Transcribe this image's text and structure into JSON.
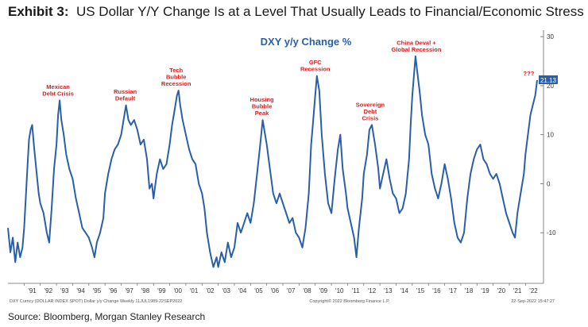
{
  "header": {
    "exhibit_label": "Exhibit 3:",
    "title": "US Dollar Y/Y Change Is at a Level That Usually Leads to Financial/Economic Stress"
  },
  "source": "Source: Bloomberg, Morgan Stanley Research",
  "chart_data": {
    "type": "line",
    "title": "DXY y/y Change %",
    "series": [
      {
        "name": "DXY y/y Change %",
        "color": "#2a5fa8",
        "points": [
          [
            1990.0,
            -9
          ],
          [
            1990.15,
            -14
          ],
          [
            1990.3,
            -11
          ],
          [
            1990.45,
            -16
          ],
          [
            1990.6,
            -12
          ],
          [
            1990.75,
            -15
          ],
          [
            1990.9,
            -13
          ],
          [
            1991.0,
            -9
          ],
          [
            1991.1,
            -3
          ],
          [
            1991.2,
            3
          ],
          [
            1991.3,
            9
          ],
          [
            1991.4,
            11
          ],
          [
            1991.5,
            12
          ],
          [
            1991.6,
            8
          ],
          [
            1991.75,
            3
          ],
          [
            1991.9,
            -2
          ],
          [
            1992.0,
            -4
          ],
          [
            1992.2,
            -6
          ],
          [
            1992.4,
            -10
          ],
          [
            1992.55,
            -12
          ],
          [
            1992.7,
            -5
          ],
          [
            1992.85,
            3
          ],
          [
            1993.0,
            8
          ],
          [
            1993.1,
            14
          ],
          [
            1993.2,
            17
          ],
          [
            1993.3,
            13
          ],
          [
            1993.45,
            10
          ],
          [
            1993.6,
            6
          ],
          [
            1993.8,
            3
          ],
          [
            1994.0,
            1
          ],
          [
            1994.2,
            -3
          ],
          [
            1994.4,
            -6
          ],
          [
            1994.6,
            -9
          ],
          [
            1994.8,
            -10
          ],
          [
            1995.0,
            -11
          ],
          [
            1995.2,
            -13
          ],
          [
            1995.35,
            -15
          ],
          [
            1995.5,
            -12
          ],
          [
            1995.7,
            -10
          ],
          [
            1995.9,
            -7
          ],
          [
            1996.0,
            -2
          ],
          [
            1996.2,
            2
          ],
          [
            1996.4,
            5
          ],
          [
            1996.6,
            7
          ],
          [
            1996.8,
            8
          ],
          [
            1997.0,
            10
          ],
          [
            1997.15,
            13
          ],
          [
            1997.3,
            16
          ],
          [
            1997.45,
            13
          ],
          [
            1997.6,
            12
          ],
          [
            1997.8,
            13
          ],
          [
            1998.0,
            11
          ],
          [
            1998.2,
            8
          ],
          [
            1998.4,
            9
          ],
          [
            1998.6,
            5
          ],
          [
            1998.75,
            -1
          ],
          [
            1998.9,
            0
          ],
          [
            1999.0,
            -3
          ],
          [
            1999.2,
            2
          ],
          [
            1999.4,
            5
          ],
          [
            1999.6,
            3
          ],
          [
            1999.8,
            4
          ],
          [
            2000.0,
            8
          ],
          [
            2000.15,
            12
          ],
          [
            2000.3,
            15
          ],
          [
            2000.45,
            18
          ],
          [
            2000.55,
            19
          ],
          [
            2000.65,
            16
          ],
          [
            2000.8,
            13
          ],
          [
            2001.0,
            10
          ],
          [
            2001.2,
            7
          ],
          [
            2001.4,
            5
          ],
          [
            2001.6,
            4
          ],
          [
            2001.8,
            0
          ],
          [
            2002.0,
            -2
          ],
          [
            2002.15,
            -5
          ],
          [
            2002.3,
            -10
          ],
          [
            2002.5,
            -14
          ],
          [
            2002.7,
            -17
          ],
          [
            2002.9,
            -15
          ],
          [
            2003.0,
            -17
          ],
          [
            2003.2,
            -14
          ],
          [
            2003.4,
            -16
          ],
          [
            2003.6,
            -12
          ],
          [
            2003.8,
            -15
          ],
          [
            2004.0,
            -13
          ],
          [
            2004.2,
            -8
          ],
          [
            2004.4,
            -10
          ],
          [
            2004.6,
            -8
          ],
          [
            2004.8,
            -6
          ],
          [
            2005.0,
            -8
          ],
          [
            2005.2,
            -4
          ],
          [
            2005.4,
            2
          ],
          [
            2005.6,
            8
          ],
          [
            2005.75,
            13
          ],
          [
            2005.9,
            10
          ],
          [
            2006.0,
            8
          ],
          [
            2006.2,
            3
          ],
          [
            2006.4,
            -2
          ],
          [
            2006.6,
            -4
          ],
          [
            2006.8,
            -2
          ],
          [
            2007.0,
            -4
          ],
          [
            2007.2,
            -6
          ],
          [
            2007.4,
            -8
          ],
          [
            2007.6,
            -7
          ],
          [
            2007.8,
            -10
          ],
          [
            2008.0,
            -11
          ],
          [
            2008.2,
            -13
          ],
          [
            2008.4,
            -9
          ],
          [
            2008.6,
            -2
          ],
          [
            2008.75,
            8
          ],
          [
            2008.9,
            14
          ],
          [
            2009.0,
            18
          ],
          [
            2009.1,
            22
          ],
          [
            2009.25,
            19
          ],
          [
            2009.4,
            10
          ],
          [
            2009.6,
            2
          ],
          [
            2009.8,
            -4
          ],
          [
            2010.0,
            -6
          ],
          [
            2010.2,
            1
          ],
          [
            2010.4,
            7
          ],
          [
            2010.55,
            10
          ],
          [
            2010.7,
            3
          ],
          [
            2010.9,
            -2
          ],
          [
            2011.0,
            -5
          ],
          [
            2011.2,
            -8
          ],
          [
            2011.4,
            -11
          ],
          [
            2011.55,
            -15
          ],
          [
            2011.7,
            -9
          ],
          [
            2011.9,
            -3
          ],
          [
            2012.0,
            2
          ],
          [
            2012.2,
            6
          ],
          [
            2012.35,
            11
          ],
          [
            2012.5,
            12
          ],
          [
            2012.7,
            8
          ],
          [
            2012.9,
            3
          ],
          [
            2013.0,
            -1
          ],
          [
            2013.2,
            2
          ],
          [
            2013.4,
            5
          ],
          [
            2013.6,
            1
          ],
          [
            2013.8,
            -2
          ],
          [
            2014.0,
            -3
          ],
          [
            2014.2,
            -6
          ],
          [
            2014.4,
            -5
          ],
          [
            2014.6,
            -2
          ],
          [
            2014.8,
            5
          ],
          [
            2014.9,
            12
          ],
          [
            2015.0,
            18
          ],
          [
            2015.1,
            22
          ],
          [
            2015.2,
            26
          ],
          [
            2015.3,
            23
          ],
          [
            2015.45,
            19
          ],
          [
            2015.6,
            14
          ],
          [
            2015.8,
            10
          ],
          [
            2016.0,
            8
          ],
          [
            2016.2,
            2
          ],
          [
            2016.4,
            -1
          ],
          [
            2016.6,
            -3
          ],
          [
            2016.8,
            0
          ],
          [
            2017.0,
            4
          ],
          [
            2017.2,
            1
          ],
          [
            2017.4,
            -3
          ],
          [
            2017.6,
            -8
          ],
          [
            2017.8,
            -11
          ],
          [
            2018.0,
            -12
          ],
          [
            2018.2,
            -10
          ],
          [
            2018.4,
            -3
          ],
          [
            2018.6,
            2
          ],
          [
            2018.8,
            5
          ],
          [
            2019.0,
            7
          ],
          [
            2019.2,
            8
          ],
          [
            2019.4,
            5
          ],
          [
            2019.6,
            4
          ],
          [
            2019.8,
            2
          ],
          [
            2020.0,
            1
          ],
          [
            2020.2,
            2
          ],
          [
            2020.4,
            0
          ],
          [
            2020.6,
            -3
          ],
          [
            2020.8,
            -6
          ],
          [
            2021.0,
            -8
          ],
          [
            2021.2,
            -10
          ],
          [
            2021.35,
            -11
          ],
          [
            2021.5,
            -6
          ],
          [
            2021.7,
            -2
          ],
          [
            2021.9,
            2
          ],
          [
            2022.0,
            6
          ],
          [
            2022.15,
            10
          ],
          [
            2022.3,
            14
          ],
          [
            2022.45,
            16
          ],
          [
            2022.6,
            18
          ],
          [
            2022.72,
            21.13
          ]
        ]
      }
    ],
    "x_ticks": [
      "'91",
      "'92",
      "'93",
      "'94",
      "'95",
      "'96",
      "'97",
      "'98",
      "'99",
      "'00",
      "'01",
      "'02",
      "'03",
      "'04",
      "'05",
      "'06",
      "'07",
      "'08",
      "'09",
      "'10",
      "'11",
      "'12",
      "'13",
      "'14",
      "'15",
      "'16",
      "'17",
      "'18",
      "'19",
      "'20",
      "'21",
      "'22"
    ],
    "x_tick_start_year": 1991,
    "y_ticks": [
      30,
      20,
      10,
      0,
      -10
    ],
    "ylim": [
      -20,
      31
    ],
    "xlim": [
      1990.0,
      2022.72
    ],
    "last_value_label": "21.13",
    "annotations": [
      {
        "lines": [
          "Mexican",
          "Debt Crisis"
        ],
        "x": 1993.1
      },
      {
        "lines": [
          "Russian",
          "Default"
        ],
        "x": 1997.25
      },
      {
        "lines": [
          "Tech",
          "Bubble",
          "Recession"
        ],
        "x": 2000.4
      },
      {
        "lines": [
          "Housing",
          "Bubble",
          "Peak"
        ],
        "x": 2005.7
      },
      {
        "lines": [
          "GFC",
          "Recession"
        ],
        "x": 2009.0
      },
      {
        "lines": [
          "Sovereign",
          "Debt",
          "Crisis"
        ],
        "x": 2012.4
      },
      {
        "lines": [
          "China Deval +",
          "Global Recession"
        ],
        "x": 2015.25
      },
      {
        "lines": [
          "???"
        ],
        "x": 2022.2
      }
    ],
    "footer_left": "DXY Curncy (DOLLAR INDEX SPOT) Dollar y/y Change  Weekly 11JUL1989-22SEP2022",
    "footer_center": "Copyright© 2022 Bloomberg Finance L.P.",
    "footer_right": "22-Sep-2022 15:47:27"
  }
}
